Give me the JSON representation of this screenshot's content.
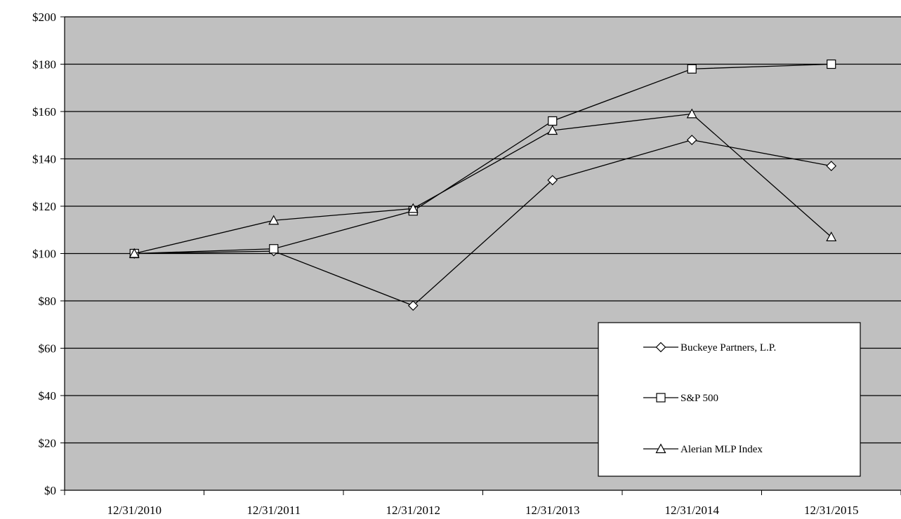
{
  "chart_data": {
    "type": "line",
    "title": "",
    "xlabel": "",
    "ylabel": "",
    "categories": [
      "12/31/2010",
      "12/31/2011",
      "12/31/2012",
      "12/31/2013",
      "12/31/2014",
      "12/31/2015"
    ],
    "ylim": [
      0,
      200
    ],
    "y_ticks": [
      0,
      20,
      40,
      60,
      80,
      100,
      120,
      140,
      160,
      180,
      200
    ],
    "y_tick_labels": [
      "$0",
      "$20",
      "$40",
      "$60",
      "$80",
      "$100",
      "$120",
      "$140",
      "$160",
      "$180",
      "$200"
    ],
    "grid": "horizontal",
    "plot_background": "#c0c0c0",
    "line_color": "#000000",
    "legend_position": "bottom-right",
    "series": [
      {
        "name": "Buckeye Partners, L.P.",
        "marker": "diamond",
        "values": [
          100,
          101,
          78,
          131,
          148,
          137
        ]
      },
      {
        "name": "S&P 500",
        "marker": "square",
        "values": [
          100,
          102,
          118,
          156,
          178,
          180
        ]
      },
      {
        "name": "Alerian MLP Index",
        "marker": "triangle",
        "values": [
          100,
          114,
          119,
          152,
          159,
          107
        ]
      }
    ]
  }
}
